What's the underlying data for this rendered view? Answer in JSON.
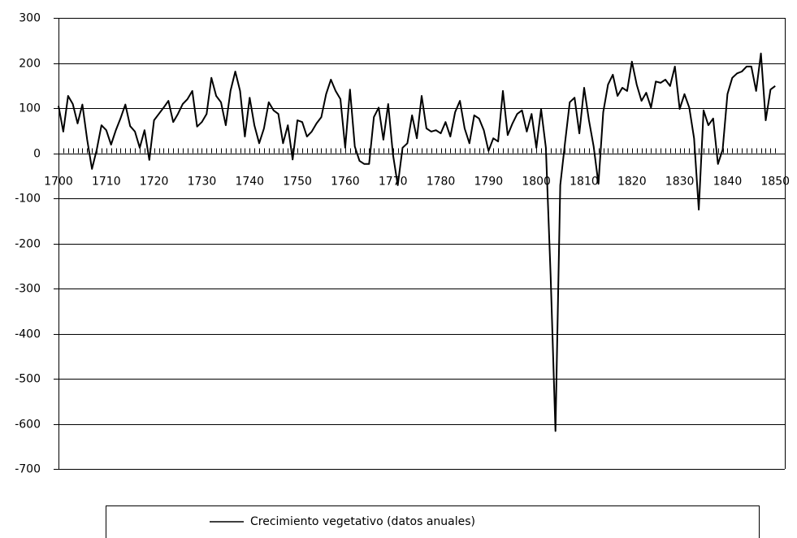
{
  "chart_data": {
    "type": "line",
    "x": [
      1700,
      1701,
      1702,
      1703,
      1704,
      1705,
      1706,
      1707,
      1708,
      1709,
      1710,
      1711,
      1712,
      1713,
      1714,
      1715,
      1716,
      1717,
      1718,
      1719,
      1720,
      1721,
      1722,
      1723,
      1724,
      1725,
      1726,
      1727,
      1728,
      1729,
      1730,
      1731,
      1732,
      1733,
      1734,
      1735,
      1736,
      1737,
      1738,
      1739,
      1740,
      1741,
      1742,
      1743,
      1744,
      1745,
      1746,
      1747,
      1748,
      1749,
      1750,
      1751,
      1752,
      1753,
      1754,
      1755,
      1756,
      1757,
      1758,
      1759,
      1760,
      1761,
      1762,
      1763,
      1764,
      1765,
      1766,
      1767,
      1768,
      1769,
      1770,
      1771,
      1772,
      1773,
      1774,
      1775,
      1776,
      1777,
      1778,
      1779,
      1780,
      1781,
      1782,
      1783,
      1784,
      1785,
      1786,
      1787,
      1788,
      1789,
      1790,
      1791,
      1792,
      1793,
      1794,
      1795,
      1796,
      1797,
      1798,
      1799,
      1800,
      1801,
      1802,
      1803,
      1804,
      1805,
      1806,
      1807,
      1808,
      1809,
      1810,
      1811,
      1812,
      1813,
      1814,
      1815,
      1816,
      1817,
      1818,
      1819,
      1820,
      1821,
      1822,
      1823,
      1824,
      1825,
      1826,
      1827,
      1828,
      1829,
      1830,
      1831,
      1832,
      1833,
      1834,
      1835,
      1836,
      1837,
      1838,
      1839,
      1840,
      1841,
      1842,
      1843,
      1844,
      1845,
      1846,
      1847,
      1848,
      1849,
      1850
    ],
    "series": [
      {
        "name": "Crecimiento vegetativo (datos anuales)",
        "color": "#000000",
        "values": [
          105,
          48,
          127,
          109,
          66,
          108,
          30,
          -35,
          8,
          62,
          51,
          19,
          51,
          78,
          108,
          60,
          48,
          12,
          51,
          -15,
          73,
          87,
          101,
          116,
          69,
          87,
          109,
          120,
          138,
          59,
          69,
          87,
          167,
          127,
          113,
          62,
          138,
          181,
          138,
          37,
          123,
          62,
          22,
          55,
          113,
          95,
          87,
          22,
          62,
          -14,
          73,
          69,
          37,
          48,
          66,
          80,
          131,
          163,
          138,
          120,
          12,
          141,
          15,
          -17,
          -24,
          -24,
          80,
          101,
          30,
          109,
          -3,
          -71,
          12,
          22,
          84,
          33,
          127,
          55,
          48,
          51,
          44,
          69,
          37,
          91,
          116,
          55,
          22,
          84,
          77,
          51,
          5,
          33,
          26,
          138,
          40,
          66,
          87,
          95,
          48,
          87,
          12,
          98,
          12,
          -274,
          -616,
          -71,
          22,
          113,
          123,
          44,
          145,
          73,
          15,
          -68,
          91,
          152,
          174,
          127,
          145,
          138,
          203,
          152,
          116,
          134,
          101,
          159,
          156,
          163,
          149,
          192,
          98,
          131,
          101,
          33,
          -125,
          95,
          62,
          77,
          -24,
          8,
          131,
          167,
          177,
          181,
          192,
          192,
          138,
          221,
          73,
          141,
          149
        ]
      }
    ],
    "xlim": [
      1700,
      1852
    ],
    "xticks": [
      1700,
      1710,
      1720,
      1730,
      1740,
      1750,
      1760,
      1770,
      1780,
      1790,
      1800,
      1810,
      1820,
      1830,
      1840,
      1850
    ],
    "ylim": [
      -700,
      300
    ],
    "yticks": [
      -700,
      -600,
      -500,
      -400,
      -300,
      -200,
      -100,
      0,
      100,
      200,
      300
    ],
    "grid": true
  }
}
